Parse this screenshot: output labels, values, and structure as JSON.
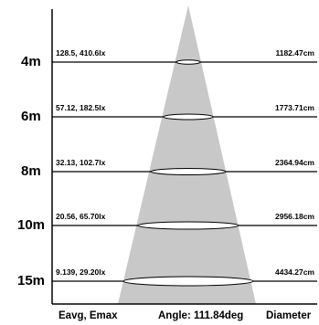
{
  "rows": [
    {
      "distance": "4m",
      "eavg_emax": "128.5, 410.6lx",
      "diameter": "1182.47cm"
    },
    {
      "distance": "6m",
      "eavg_emax": "57.12, 182.5lx",
      "diameter": "1773.71cm"
    },
    {
      "distance": "8m",
      "eavg_emax": "32.13, 102.7lx",
      "diameter": "2364.94cm"
    },
    {
      "distance": "10m",
      "eavg_emax": "20.56, 65.70lx",
      "diameter": "2956.18cm"
    },
    {
      "distance": "15m",
      "eavg_emax": "9.139, 29.20lx",
      "diameter": "4434.27cm"
    }
  ],
  "footer": {
    "left_label": "Eavg, Emax",
    "center_label": "Angle: 111.84deg",
    "right_label": "Diameter"
  },
  "colors": {
    "beam": "#c8c8c8",
    "line": "#000000",
    "ellipse_fill": "#ffffff",
    "text": "#000000"
  }
}
